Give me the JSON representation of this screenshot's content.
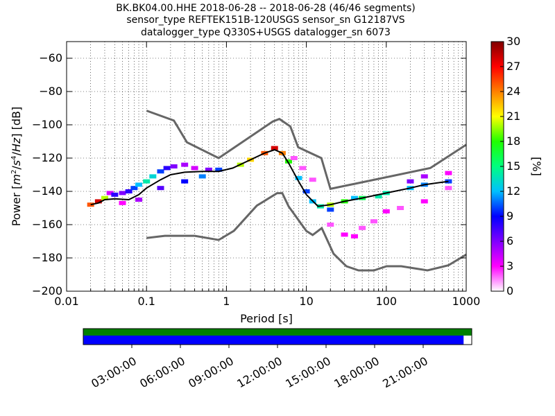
{
  "title_lines": [
    "BK.BK04.00.HHE   2018-06-28 -- 2018-06-28  (46/46 segments)",
    "sensor_type REFTEK151B-120USGS sensor_sn G12187VS",
    "datalogger_type Q330S+USGS datalogger_sn 6073"
  ],
  "colorbar": {
    "label": "[%]",
    "ticks": [
      "0",
      "3",
      "6",
      "9",
      "12",
      "15",
      "18",
      "21",
      "24",
      "27",
      "30"
    ],
    "colors": [
      "#ffffff",
      "#ff00ff",
      "#8000ff",
      "#0000ff",
      "#00c0ff",
      "#00ff80",
      "#20ff00",
      "#ffff00",
      "#ff8000",
      "#ff0000",
      "#800000"
    ]
  },
  "timeline": {
    "tick_labels": [
      "03:00:00",
      "06:00:00",
      "09:00:00",
      "12:00:00",
      "15:00:00",
      "18:00:00",
      "21:00:00"
    ],
    "tick_hours": [
      3,
      6,
      9,
      12,
      15,
      18,
      21
    ],
    "data_coverage_fraction": 1.0,
    "psd_coverage_fraction": 0.979,
    "colors": {
      "data": "#008000",
      "psd": "#0000ff"
    }
  },
  "chart_data": {
    "type": "heatmap",
    "xlabel": "Period [s]",
    "ylabel": "Power [m^2/s^4/Hz] [dB]",
    "xscale": "log",
    "xlim": [
      0.01,
      1000
    ],
    "ylim": [
      -200,
      -50
    ],
    "x_tick_values": [
      0.01,
      0.1,
      1,
      10,
      100,
      1000
    ],
    "x_tick_labels": [
      "0.01",
      "0.1",
      "1",
      "10",
      "100",
      "1000"
    ],
    "y_tick_values": [
      -200,
      -180,
      -160,
      -140,
      -120,
      -100,
      -80,
      -60
    ],
    "y_tick_labels": [
      "−200",
      "−180",
      "−160",
      "−140",
      "−120",
      "−100",
      "−80",
      "−60"
    ],
    "grid": true,
    "noise_models": [
      {
        "name": "NHNM",
        "x": [
          0.1,
          0.22,
          0.32,
          0.8,
          3.8,
          4.6,
          6.3,
          7.9,
          15.4,
          20,
          354.8,
          1000
        ],
        "y": [
          -91.5,
          -97.4,
          -110.5,
          -120,
          -98,
          -96.5,
          -101,
          -113.5,
          -120,
          -138.5,
          -126,
          -112
        ]
      },
      {
        "name": "NLNM",
        "x": [
          0.1,
          0.17,
          0.4,
          0.8,
          1.24,
          2.4,
          4.3,
          5,
          6,
          10,
          12,
          15.6,
          21.9,
          31.6,
          45,
          70,
          101,
          154,
          328,
          600,
          1000
        ],
        "y": [
          -168,
          -166.7,
          -166.7,
          -169.2,
          -163.7,
          -148.6,
          -141.1,
          -141.1,
          -149,
          -163.8,
          -166.2,
          -162.1,
          -177.5,
          -185,
          -187.5,
          -187.5,
          -185,
          -185,
          -187.5,
          -184.4,
          -178
        ]
      }
    ],
    "median": {
      "name": "median",
      "x": [
        0.02,
        0.025,
        0.03,
        0.04,
        0.06,
        0.08,
        0.1,
        0.15,
        0.2,
        0.3,
        0.5,
        0.8,
        1.2,
        2,
        3,
        4,
        5,
        6,
        8,
        10,
        14,
        20,
        30,
        50,
        100,
        200,
        300,
        600
      ],
      "y": [
        -148,
        -147,
        -145,
        -144.5,
        -145,
        -142,
        -138,
        -133,
        -130,
        -128.5,
        -128,
        -128,
        -126,
        -121,
        -117,
        -115,
        -117,
        -123,
        -134,
        -142,
        -149,
        -148,
        -146,
        -144,
        -141,
        -138,
        -136,
        -134
      ]
    },
    "heat_cells": [
      {
        "period": 0.02,
        "y": -148,
        "pct": 25
      },
      {
        "period": 0.025,
        "y": -146,
        "pct": 28
      },
      {
        "period": 0.03,
        "y": -144,
        "pct": 20
      },
      {
        "period": 0.035,
        "y": -141,
        "pct": 4
      },
      {
        "period": 0.04,
        "y": -142,
        "pct": 8
      },
      {
        "period": 0.05,
        "y": -141,
        "pct": 6
      },
      {
        "period": 0.06,
        "y": -140,
        "pct": 8
      },
      {
        "period": 0.07,
        "y": -138,
        "pct": 10
      },
      {
        "period": 0.08,
        "y": -136,
        "pct": 12
      },
      {
        "period": 0.1,
        "y": -134,
        "pct": 14
      },
      {
        "period": 0.12,
        "y": -131,
        "pct": 13
      },
      {
        "period": 0.15,
        "y": -128,
        "pct": 10
      },
      {
        "period": 0.18,
        "y": -126,
        "pct": 8
      },
      {
        "period": 0.22,
        "y": -125,
        "pct": 6
      },
      {
        "period": 0.3,
        "y": -124,
        "pct": 5
      },
      {
        "period": 0.4,
        "y": -126,
        "pct": 4
      },
      {
        "period": 0.6,
        "y": -127,
        "pct": 6
      },
      {
        "period": 0.8,
        "y": -127,
        "pct": 10
      },
      {
        "period": 1.5,
        "y": -124,
        "pct": 20
      },
      {
        "period": 2,
        "y": -121,
        "pct": 22
      },
      {
        "period": 3,
        "y": -117,
        "pct": 25
      },
      {
        "period": 4,
        "y": -114,
        "pct": 28
      },
      {
        "period": 5,
        "y": -117,
        "pct": 24
      },
      {
        "period": 6,
        "y": -122,
        "pct": 18
      },
      {
        "period": 8,
        "y": -132,
        "pct": 12
      },
      {
        "period": 10,
        "y": -140,
        "pct": 10
      },
      {
        "period": 12,
        "y": -146,
        "pct": 12
      },
      {
        "period": 15,
        "y": -149,
        "pct": 14
      },
      {
        "period": 20,
        "y": -148,
        "pct": 20
      },
      {
        "period": 30,
        "y": -146,
        "pct": 18
      },
      {
        "period": 50,
        "y": -144,
        "pct": 16
      },
      {
        "period": 100,
        "y": -141,
        "pct": 14
      },
      {
        "period": 200,
        "y": -138,
        "pct": 12
      },
      {
        "period": 300,
        "y": -136,
        "pct": 11
      },
      {
        "period": 600,
        "y": -134,
        "pct": 10
      },
      {
        "period": 0.05,
        "y": -147,
        "pct": 3
      },
      {
        "period": 0.08,
        "y": -145,
        "pct": 5
      },
      {
        "period": 0.15,
        "y": -138,
        "pct": 7
      },
      {
        "period": 0.3,
        "y": -134,
        "pct": 9
      },
      {
        "period": 0.5,
        "y": -131,
        "pct": 11
      },
      {
        "period": 7,
        "y": -120,
        "pct": 2
      },
      {
        "period": 9,
        "y": -126,
        "pct": 2
      },
      {
        "period": 12,
        "y": -133,
        "pct": 2
      },
      {
        "period": 20,
        "y": -160,
        "pct": 2
      },
      {
        "period": 30,
        "y": -166,
        "pct": 3
      },
      {
        "period": 40,
        "y": -167,
        "pct": 3
      },
      {
        "period": 50,
        "y": -162,
        "pct": 2
      },
      {
        "period": 70,
        "y": -158,
        "pct": 2
      },
      {
        "period": 100,
        "y": -152,
        "pct": 3
      },
      {
        "period": 150,
        "y": -150,
        "pct": 2
      },
      {
        "period": 300,
        "y": -146,
        "pct": 3
      },
      {
        "period": 600,
        "y": -138,
        "pct": 2
      },
      {
        "period": 600,
        "y": -129,
        "pct": 3
      },
      {
        "period": 300,
        "y": -131,
        "pct": 5
      },
      {
        "period": 200,
        "y": -134,
        "pct": 6
      },
      {
        "period": 20,
        "y": -151,
        "pct": 10
      },
      {
        "period": 40,
        "y": -144,
        "pct": 12
      },
      {
        "period": 80,
        "y": -143,
        "pct": 14
      }
    ]
  }
}
